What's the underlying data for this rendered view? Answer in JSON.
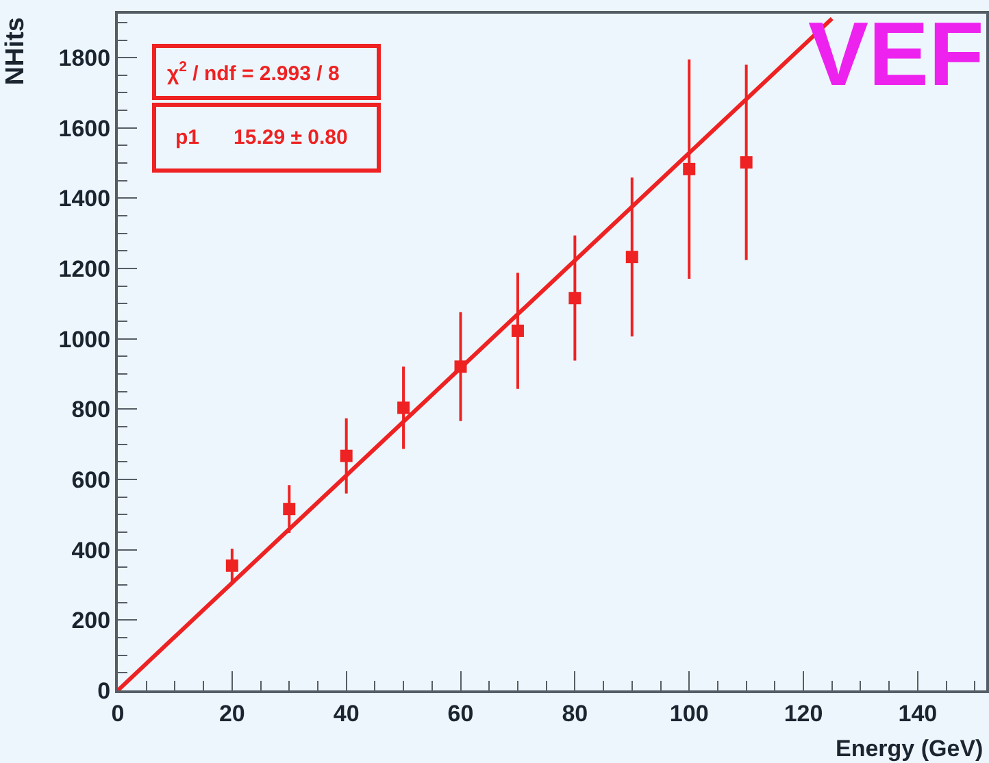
{
  "chart_data": {
    "type": "scatter",
    "xlabel": "Energy (GeV)",
    "ylabel": "NHits",
    "xlim": [
      0,
      152
    ],
    "xticks": [
      0,
      20,
      40,
      60,
      80,
      100,
      120,
      140
    ],
    "ylim": [
      0,
      1925
    ],
    "yticks": [
      0,
      200,
      400,
      600,
      800,
      1000,
      1200,
      1400,
      1600,
      1800
    ],
    "grid": false,
    "legend": false,
    "series": [
      {
        "color": "#ee2222",
        "marker": "square",
        "x": [
          20,
          30,
          40,
          50,
          60,
          70,
          80,
          90,
          100,
          110
        ],
        "values": [
          355,
          516,
          667,
          804,
          921,
          1023,
          1116,
          1233,
          1483,
          1502
        ],
        "errors": [
          48,
          68,
          107,
          117,
          155,
          165,
          178,
          226,
          312,
          278
        ]
      },
      {
        "type": "line",
        "color": "#ee2222",
        "marker": "none",
        "line_style": "solid",
        "x": [
          0,
          125
        ],
        "values": [
          0,
          1911
        ]
      }
    ],
    "annotations": [
      "χ$^{2}$ / ndf = 2.993 / 8",
      "p1      15.29 ± 0.80",
      "VEF"
    ]
  }
}
